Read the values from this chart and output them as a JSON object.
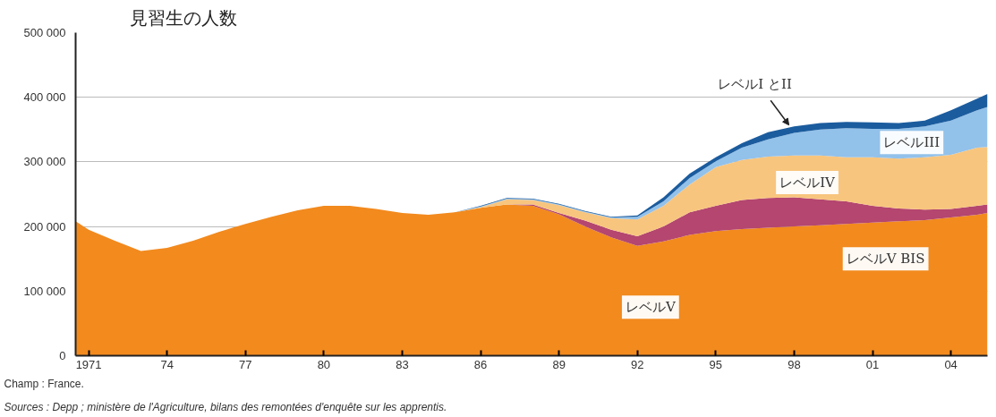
{
  "chart_data": {
    "type": "area",
    "stacked": true,
    "title": "見習生の人数",
    "x": [
      1970.5,
      1971,
      1972,
      1973,
      1974,
      1975,
      1976,
      1977,
      1978,
      1979,
      1980,
      1981,
      1982,
      1983,
      1984,
      1985,
      1986,
      1987,
      1988,
      1989,
      1990,
      1991,
      1992,
      1993,
      1994,
      1995,
      1996,
      1997,
      1998,
      1999,
      2000,
      2001,
      2002,
      2003,
      2004,
      2005,
      2005.4
    ],
    "series": [
      {
        "name": "レベルV",
        "color": "#f28a1e",
        "values": [
          208000,
          195000,
          178000,
          162000,
          167000,
          178000,
          192000,
          204000,
          215000,
          225000,
          232000,
          232000,
          227000,
          221000,
          218000,
          222000,
          229000,
          234000,
          232000,
          219000,
          200000,
          183000,
          170000,
          177000,
          187000,
          193000,
          196000,
          198000,
          200000,
          202000,
          204000,
          206000,
          208000,
          210000,
          214000,
          218000,
          221000
        ]
      },
      {
        "name": "レベルV BIS",
        "color": "#b4466f",
        "values": [
          0,
          0,
          0,
          0,
          0,
          0,
          0,
          0,
          0,
          0,
          0,
          0,
          0,
          0,
          0,
          0,
          0,
          0,
          2000,
          2000,
          9000,
          12000,
          15000,
          23000,
          35000,
          39000,
          45000,
          46000,
          45000,
          40000,
          35000,
          26000,
          20000,
          16000,
          13000,
          14000,
          13000
        ]
      },
      {
        "name": "レベルIV",
        "color": "#f8c57e",
        "values": [
          0,
          0,
          0,
          0,
          0,
          0,
          0,
          0,
          0,
          0,
          0,
          0,
          0,
          0,
          0,
          0,
          1000,
          8000,
          7000,
          12000,
          13000,
          18000,
          26000,
          32000,
          43000,
          60000,
          62000,
          64000,
          65000,
          68000,
          68000,
          75000,
          77000,
          81000,
          84000,
          90000,
          89000
        ]
      },
      {
        "name": "レベルIII",
        "color": "#92c1ea",
        "values": [
          0,
          0,
          0,
          0,
          0,
          0,
          0,
          0,
          0,
          0,
          0,
          0,
          0,
          0,
          0,
          0,
          1000,
          1000,
          1000,
          1000,
          1000,
          1000,
          4000,
          7000,
          10000,
          9000,
          19000,
          27000,
          35000,
          40000,
          45000,
          44000,
          46000,
          48000,
          53000,
          58000,
          62000
        ]
      },
      {
        "name": "レベルI とII",
        "color": "#1b5c9e",
        "values": [
          0,
          0,
          0,
          0,
          0,
          0,
          0,
          0,
          0,
          0,
          0,
          0,
          0,
          0,
          0,
          0,
          1000,
          1000,
          1000,
          1000,
          1000,
          1000,
          2000,
          6000,
          7000,
          6000,
          7000,
          11000,
          10000,
          10000,
          10000,
          10000,
          9000,
          9000,
          16000,
          18000,
          20000
        ]
      }
    ],
    "xlim": [
      1970.5,
      2005.4
    ],
    "xticks": [
      1971,
      {
        "value": 1974,
        "label": "74"
      },
      {
        "value": 1977,
        "label": "77"
      },
      {
        "value": 1980,
        "label": "80"
      },
      {
        "value": 1983,
        "label": "83"
      },
      {
        "value": 1986,
        "label": "86"
      },
      {
        "value": 1989,
        "label": "89"
      },
      {
        "value": 1992,
        "label": "92"
      },
      {
        "value": 1995,
        "label": "95"
      },
      {
        "value": 1998,
        "label": "98"
      },
      {
        "value": 2001,
        "label": "01"
      },
      {
        "value": 2004,
        "label": "04"
      }
    ],
    "ylim": [
      0,
      500000
    ],
    "yticks": [
      0,
      {
        "value": 100000,
        "label": "100 000"
      },
      {
        "value": 200000,
        "label": "200 000"
      },
      {
        "value": 300000,
        "label": "300 000"
      },
      {
        "value": 400000,
        "label": "400 000"
      },
      {
        "value": 500000,
        "label": "500 000"
      }
    ],
    "grid": "y",
    "annotations": [
      "Champ : France.",
      "Sources : Depp ; ministère de l'Agriculture, bilans des remontées d'enquête sur les apprentis."
    ]
  }
}
